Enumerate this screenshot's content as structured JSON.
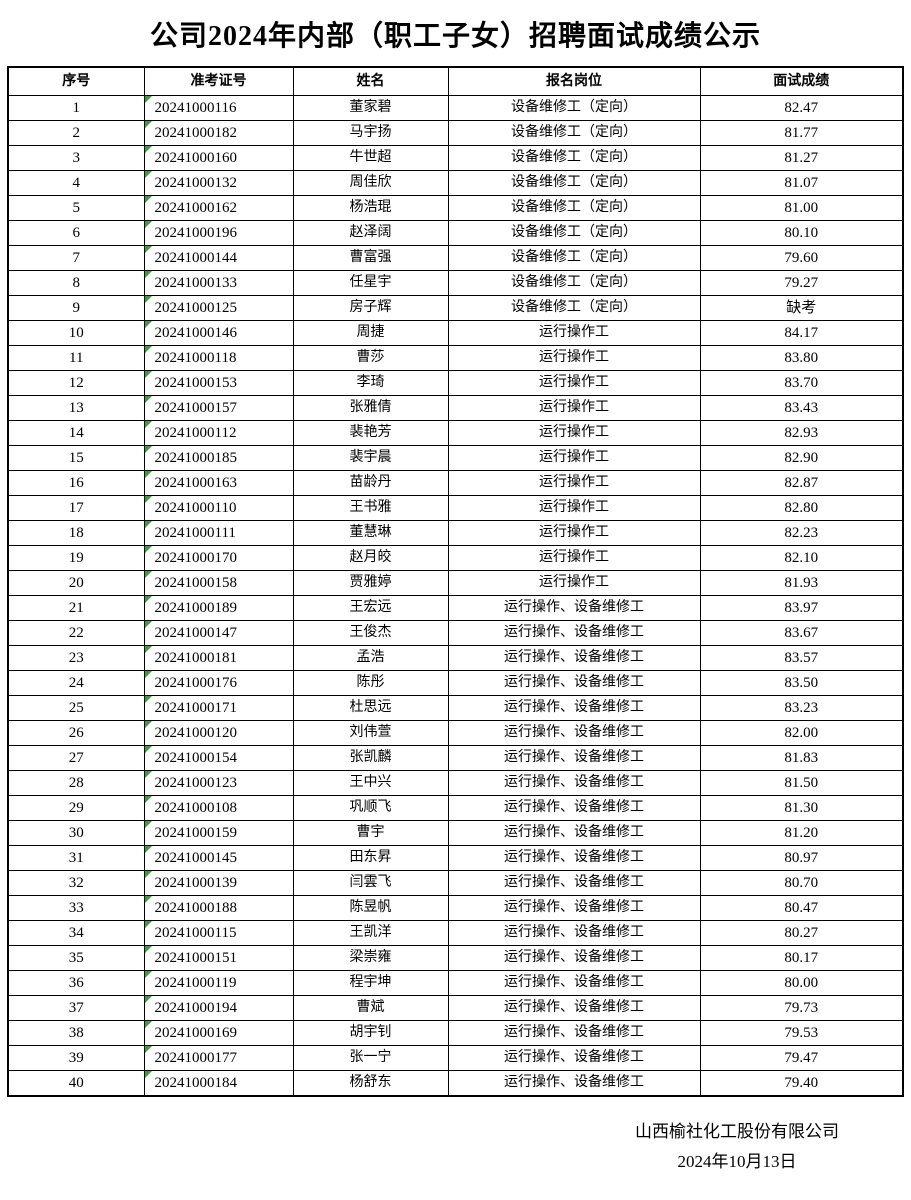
{
  "title": "公司2024年内部（职工子女）招聘面试成绩公示",
  "colors": {
    "triangle_green": "#3a9e3a",
    "border": "#000000"
  },
  "table": {
    "headers": [
      "序号",
      "准考证号",
      "姓名",
      "报名岗位",
      "面试成绩"
    ],
    "rows": [
      [
        "1",
        "20241000116",
        "董家碧",
        "设备维修工（定向）",
        "82.47"
      ],
      [
        "2",
        "20241000182",
        "马宇扬",
        "设备维修工（定向）",
        "81.77"
      ],
      [
        "3",
        "20241000160",
        "牛世超",
        "设备维修工（定向）",
        "81.27"
      ],
      [
        "4",
        "20241000132",
        "周佳欣",
        "设备维修工（定向）",
        "81.07"
      ],
      [
        "5",
        "20241000162",
        "杨浩琨",
        "设备维修工（定向）",
        "81.00"
      ],
      [
        "6",
        "20241000196",
        "赵泽阔",
        "设备维修工（定向）",
        "80.10"
      ],
      [
        "7",
        "20241000144",
        "曹富强",
        "设备维修工（定向）",
        "79.60"
      ],
      [
        "8",
        "20241000133",
        "任星宇",
        "设备维修工（定向）",
        "79.27"
      ],
      [
        "9",
        "20241000125",
        "房子辉",
        "设备维修工（定向）",
        "缺考"
      ],
      [
        "10",
        "20241000146",
        "周捷",
        "运行操作工",
        "84.17"
      ],
      [
        "11",
        "20241000118",
        "曹莎",
        "运行操作工",
        "83.80"
      ],
      [
        "12",
        "20241000153",
        "李琦",
        "运行操作工",
        "83.70"
      ],
      [
        "13",
        "20241000157",
        "张雅倩",
        "运行操作工",
        "83.43"
      ],
      [
        "14",
        "20241000112",
        "裴艳芳",
        "运行操作工",
        "82.93"
      ],
      [
        "15",
        "20241000185",
        "裴宇晨",
        "运行操作工",
        "82.90"
      ],
      [
        "16",
        "20241000163",
        "苗龄丹",
        "运行操作工",
        "82.87"
      ],
      [
        "17",
        "20241000110",
        "王书雅",
        "运行操作工",
        "82.80"
      ],
      [
        "18",
        "20241000111",
        "董慧琳",
        "运行操作工",
        "82.23"
      ],
      [
        "19",
        "20241000170",
        "赵月皎",
        "运行操作工",
        "82.10"
      ],
      [
        "20",
        "20241000158",
        "贾雅婷",
        "运行操作工",
        "81.93"
      ],
      [
        "21",
        "20241000189",
        "王宏远",
        "运行操作、设备维修工",
        "83.97"
      ],
      [
        "22",
        "20241000147",
        "王俊杰",
        "运行操作、设备维修工",
        "83.67"
      ],
      [
        "23",
        "20241000181",
        "孟浩",
        "运行操作、设备维修工",
        "83.57"
      ],
      [
        "24",
        "20241000176",
        "陈彤",
        "运行操作、设备维修工",
        "83.50"
      ],
      [
        "25",
        "20241000171",
        "杜思远",
        "运行操作、设备维修工",
        "83.23"
      ],
      [
        "26",
        "20241000120",
        "刘伟萱",
        "运行操作、设备维修工",
        "82.00"
      ],
      [
        "27",
        "20241000154",
        "张凯麟",
        "运行操作、设备维修工",
        "81.83"
      ],
      [
        "28",
        "20241000123",
        "王中兴",
        "运行操作、设备维修工",
        "81.50"
      ],
      [
        "29",
        "20241000108",
        "巩顺飞",
        "运行操作、设备维修工",
        "81.30"
      ],
      [
        "30",
        "20241000159",
        "曹宇",
        "运行操作、设备维修工",
        "81.20"
      ],
      [
        "31",
        "20241000145",
        "田东昇",
        "运行操作、设备维修工",
        "80.97"
      ],
      [
        "32",
        "20241000139",
        "闫雲飞",
        "运行操作、设备维修工",
        "80.70"
      ],
      [
        "33",
        "20241000188",
        "陈昱帆",
        "运行操作、设备维修工",
        "80.47"
      ],
      [
        "34",
        "20241000115",
        "王凯洋",
        "运行操作、设备维修工",
        "80.27"
      ],
      [
        "35",
        "20241000151",
        "梁崇雍",
        "运行操作、设备维修工",
        "80.17"
      ],
      [
        "36",
        "20241000119",
        "程宇坤",
        "运行操作、设备维修工",
        "80.00"
      ],
      [
        "37",
        "20241000194",
        "曹斌",
        "运行操作、设备维修工",
        "79.73"
      ],
      [
        "38",
        "20241000169",
        "胡宇钊",
        "运行操作、设备维修工",
        "79.53"
      ],
      [
        "39",
        "20241000177",
        "张一宁",
        "运行操作、设备维修工",
        "79.47"
      ],
      [
        "40",
        "20241000184",
        "杨舒东",
        "运行操作、设备维修工",
        "79.40"
      ]
    ]
  },
  "footer": {
    "company": "山西榆社化工股份有限公司",
    "date": "2024年10月13日"
  }
}
